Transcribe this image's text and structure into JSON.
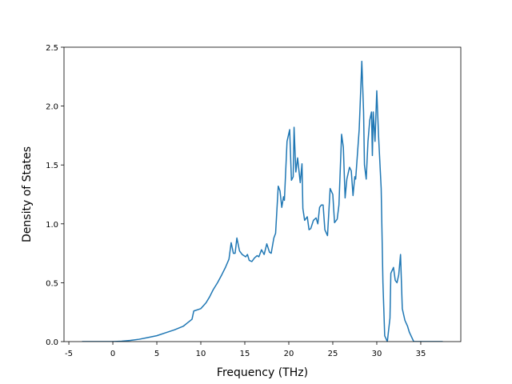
{
  "chart_data": {
    "type": "line",
    "xlabel": "Frequency (THz)",
    "ylabel": "Density of States",
    "x": [
      -3.5,
      0,
      1,
      2,
      3,
      4,
      5,
      6,
      7,
      8,
      8.5,
      9.0,
      9.2,
      10.0,
      10.6,
      11.0,
      11.4,
      11.9,
      12.4,
      12.8,
      13.2,
      13.45,
      13.7,
      13.9,
      14.1,
      14.4,
      14.7,
      15.1,
      15.3,
      15.5,
      15.8,
      16.1,
      16.4,
      16.6,
      16.9,
      17.2,
      17.5,
      17.8,
      18.0,
      18.3,
      18.5,
      18.8,
      19.0,
      19.2,
      19.4,
      19.5,
      19.8,
      20.1,
      20.3,
      20.5,
      20.6,
      20.8,
      21.0,
      21.3,
      21.5,
      21.6,
      21.8,
      22.1,
      22.3,
      22.5,
      22.8,
      23.1,
      23.3,
      23.5,
      23.7,
      23.9,
      24.1,
      24.4,
      24.7,
      25.0,
      25.2,
      25.5,
      25.7,
      26.0,
      26.2,
      26.4,
      26.6,
      26.9,
      27.1,
      27.3,
      27.5,
      27.6,
      28.0,
      28.3,
      28.5,
      28.6,
      28.8,
      29.0,
      29.2,
      29.4,
      29.5,
      29.6,
      29.8,
      30.0,
      30.2,
      30.5,
      30.7,
      30.9,
      31.2,
      31.5,
      31.6,
      31.9,
      32.1,
      32.3,
      32.5,
      32.7,
      32.9,
      33.2,
      33.5,
      33.7,
      34.2,
      37.5
    ],
    "series": [
      {
        "color": "#1f77b4",
        "values": [
          0,
          0,
          0.003,
          0.01,
          0.02,
          0.035,
          0.05,
          0.075,
          0.1,
          0.13,
          0.16,
          0.19,
          0.26,
          0.28,
          0.33,
          0.38,
          0.44,
          0.5,
          0.57,
          0.63,
          0.7,
          0.84,
          0.75,
          0.75,
          0.88,
          0.77,
          0.74,
          0.72,
          0.74,
          0.69,
          0.68,
          0.71,
          0.73,
          0.72,
          0.78,
          0.74,
          0.83,
          0.76,
          0.75,
          0.88,
          0.92,
          1.32,
          1.28,
          1.14,
          1.23,
          1.2,
          1.7,
          1.8,
          1.37,
          1.4,
          1.82,
          1.44,
          1.56,
          1.35,
          1.51,
          1.13,
          1.03,
          1.06,
          0.95,
          0.96,
          1.03,
          1.05,
          1.0,
          1.14,
          1.16,
          1.16,
          0.95,
          0.9,
          1.3,
          1.25,
          1.01,
          1.04,
          1.16,
          1.76,
          1.65,
          1.22,
          1.38,
          1.48,
          1.45,
          1.24,
          1.4,
          1.38,
          1.8,
          2.38,
          1.95,
          1.5,
          1.38,
          1.7,
          1.88,
          1.95,
          1.58,
          1.95,
          1.7,
          2.13,
          1.75,
          1.3,
          0.5,
          0.05,
          0.0,
          0.2,
          0.58,
          0.63,
          0.52,
          0.5,
          0.57,
          0.74,
          0.28,
          0.18,
          0.13,
          0.08,
          0,
          0
        ]
      }
    ],
    "xlim": [
      -5.55,
      39.55
    ],
    "xticks": [
      -5,
      0,
      5,
      10,
      15,
      20,
      25,
      30,
      35
    ],
    "ylim": [
      0,
      2.5
    ],
    "yticks": [
      {
        "value": 0,
        "label": "0.0"
      },
      {
        "value": 0.5,
        "label": "0.5"
      },
      {
        "value": 1,
        "label": "1.0"
      },
      {
        "value": 1.5,
        "label": "1.5"
      },
      {
        "value": 2,
        "label": "2.0"
      },
      {
        "value": 2.5,
        "label": "2.5"
      }
    ]
  }
}
